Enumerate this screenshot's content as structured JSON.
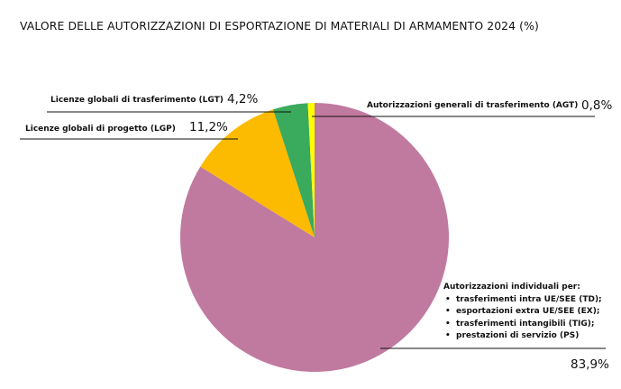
{
  "chart_data": {
    "type": "pie",
    "title": "VALORE DELLE AUTORIZZAZIONI DI ESPORTAZIONE DI MATERIALI DI ARMAMENTO 2024 (%)",
    "slices": [
      {
        "label": "Autorizzazioni individuali per:",
        "value": 83.9,
        "value_label": "83,9%",
        "color": "#c17a9f",
        "items": [
          "trasferimenti intra UE/SEE (TD);",
          "esportazioni extra UE/SEE (EX);",
          "trasferimenti intangibili (TIG);",
          "prestazioni di servizio (PS)"
        ]
      },
      {
        "label": "Licenze globali di progetto (LGP)",
        "value": 11.2,
        "value_label": "11,2%",
        "color": "#fcbb00"
      },
      {
        "label": "Licenze globali di trasferimento (LGT)",
        "value": 4.2,
        "value_label": "4,2%",
        "color": "#3aaa5c"
      },
      {
        "label": "Autorizzazioni generali di trasferimento (AGT)",
        "value": 0.8,
        "value_label": "0,8%",
        "color": "#ffff00"
      }
    ]
  }
}
